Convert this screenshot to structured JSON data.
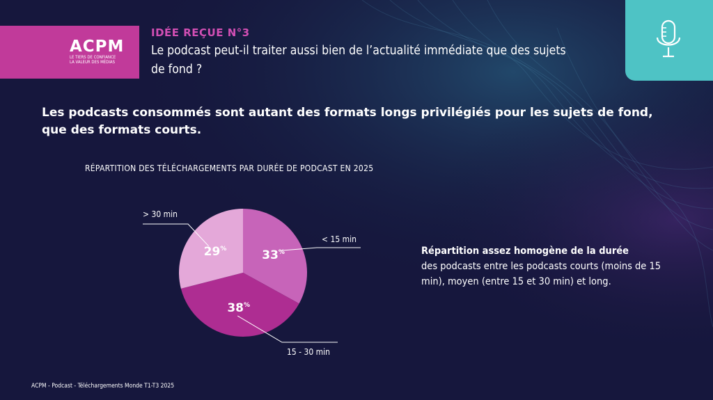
{
  "logo": {
    "name": "ACPM",
    "tagline_1": "LE TIERS DE CONFIANCE",
    "tagline_2": "LA VALEUR DES MÉDIAS"
  },
  "header": {
    "label": "IDÉE REÇUE N°3",
    "question": "Le podcast peut-il traiter aussi bien de l’actualité immédiate que des sujets de fond ?"
  },
  "headline": "Les podcasts consommés sont autant des formats longs privilégiés pour les sujets de fond, que des formats courts.",
  "note": {
    "bold": "Répartition assez homogène de la durée",
    "text": "des podcasts entre les podcasts courts (moins de 15 min), moyen (entre 15 et 30 min) et long."
  },
  "source": "ACPM - Podcast - Téléchargements Monde T1-T3 2025",
  "icons": {
    "top_right": "microphone-icon"
  },
  "colors": {
    "background": "#14163a",
    "logo_band": "#c13a9a",
    "accent_label": "#d24fb4",
    "mic_box": "#4ec3c5"
  },
  "chart_data": {
    "type": "pie",
    "title": "RÉPARTITION DES TÉLÉCHARGEMENTS PAR DURÉE DE PODCAST EN 2025",
    "unit": "%",
    "slices": [
      {
        "label": "< 15 min",
        "value": 33,
        "color": "#c764b9"
      },
      {
        "label": "15 - 30 min",
        "value": 38,
        "color": "#ae2d92"
      },
      {
        "label": "> 30 min",
        "value": 29,
        "color": "#e4a8d9"
      }
    ]
  }
}
